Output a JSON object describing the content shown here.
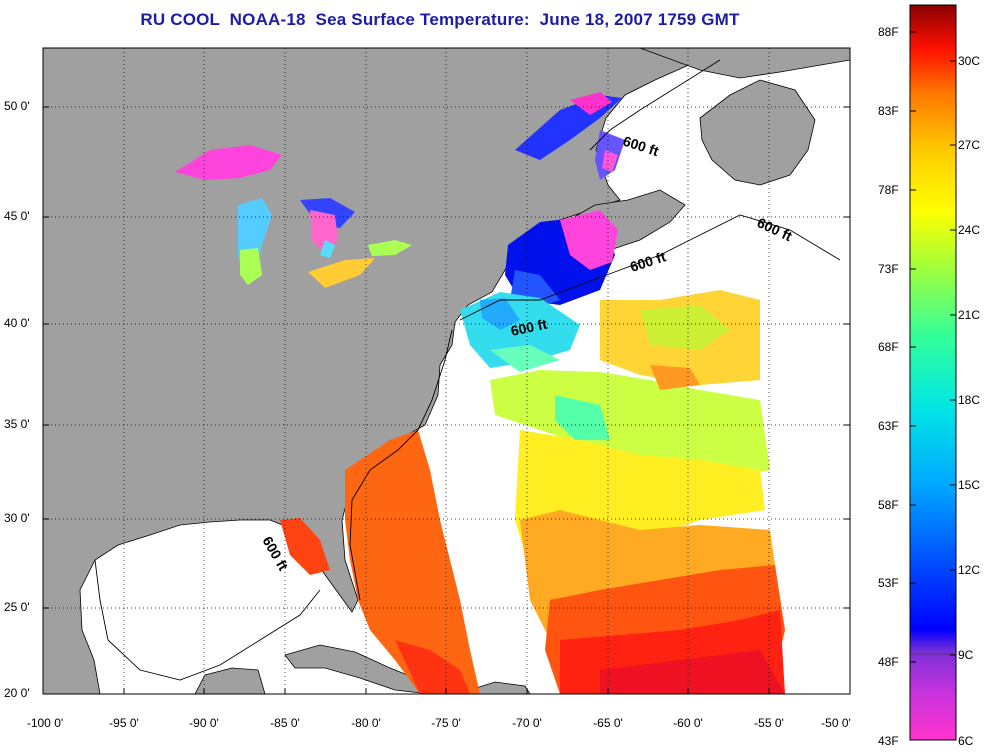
{
  "title": "RU COOL  NOAA-18  Sea Surface Temperature:  June 18, 2007 1759 GMT",
  "lat_labels": [
    "50 0'",
    "45 0'",
    "40 0'",
    "35 0'",
    "30 0'",
    "25 0'",
    "20 0'"
  ],
  "lon_labels": [
    "-100 0'",
    "-95 0'",
    "-90 0'",
    "-85 0'",
    "-80 0'",
    "-75 0'",
    "-70 0'",
    "-65 0'",
    "-60 0'",
    "-55 0'",
    "-50 0'"
  ],
  "isobath_labels": [
    "600 ft",
    "600 ft",
    "600 ft",
    "600 ft",
    "600 ft"
  ],
  "colorbar": {
    "fahrenheit": [
      "88F",
      "83F",
      "78F",
      "73F",
      "68F",
      "63F",
      "58F",
      "53F",
      "48F",
      "43F"
    ],
    "celsius": [
      "30C",
      "27C",
      "24C",
      "21C",
      "18C",
      "15C",
      "12C",
      "9C",
      "6C"
    ]
  },
  "colors": {
    "land": "#a0a0a0",
    "ocean_nodata": "#ffffff",
    "title": "#1c1ca8"
  }
}
